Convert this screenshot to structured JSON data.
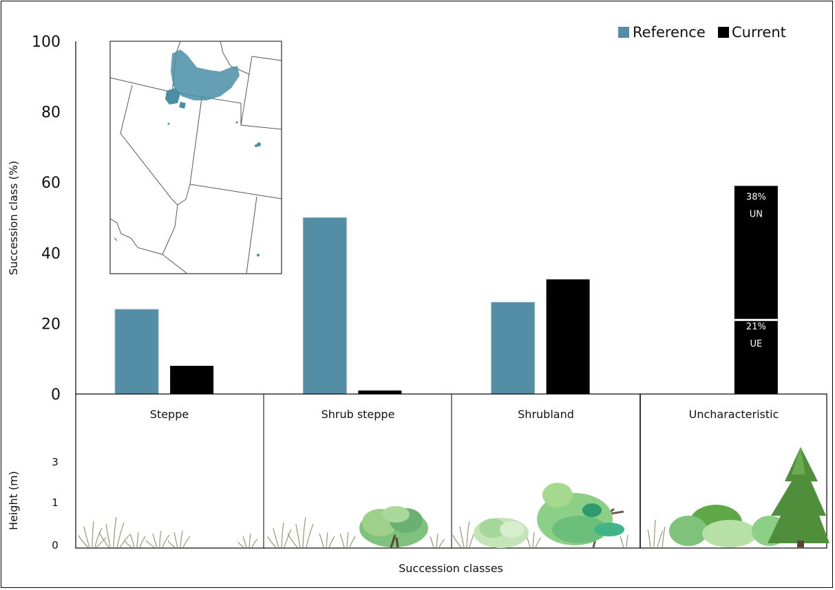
{
  "chart_data": {
    "type": "bar",
    "categories": [
      "Steppe",
      "Shrub steppe",
      "Shrubland",
      "Uncharacteristic"
    ],
    "series": [
      {
        "name": "Reference",
        "color": "#538ea6",
        "values": [
          24,
          50,
          26,
          0
        ]
      },
      {
        "name": "Current",
        "color": "#000000",
        "values": [
          8,
          1,
          32.5,
          59
        ]
      }
    ],
    "stacked_segments": [
      {
        "category": "Uncharacteristic",
        "series": "Current",
        "value": 21,
        "pct_label": "21%",
        "code_label": "UE"
      },
      {
        "category": "Uncharacteristic",
        "series": "Current",
        "value": 38,
        "pct_label": "38%",
        "code_label": "UN"
      }
    ],
    "ylabel": "Succession class (%)",
    "xlabel": "Succession classes",
    "ylim": [
      0,
      100
    ],
    "yticks": [
      "0",
      "20",
      "40",
      "60",
      "80",
      "100"
    ],
    "legend": {
      "position": "top-right",
      "entries": [
        "Reference",
        "Current"
      ]
    },
    "grid": false,
    "inset_map": {
      "type": "map",
      "highlight_color": "#4a8ea6",
      "icon": "western-us-states-map"
    },
    "height_panel": {
      "ylabel": "Height (m)",
      "yticks": [
        "0",
        "1",
        "3"
      ],
      "panels": [
        "Steppe",
        "Shrub steppe",
        "Shrubland",
        "Uncharacteristic"
      ],
      "illustrations": [
        "grass-tufts",
        "grass-and-shrub",
        "shrubs-and-tree",
        "shrubs-and-conifer"
      ]
    }
  }
}
